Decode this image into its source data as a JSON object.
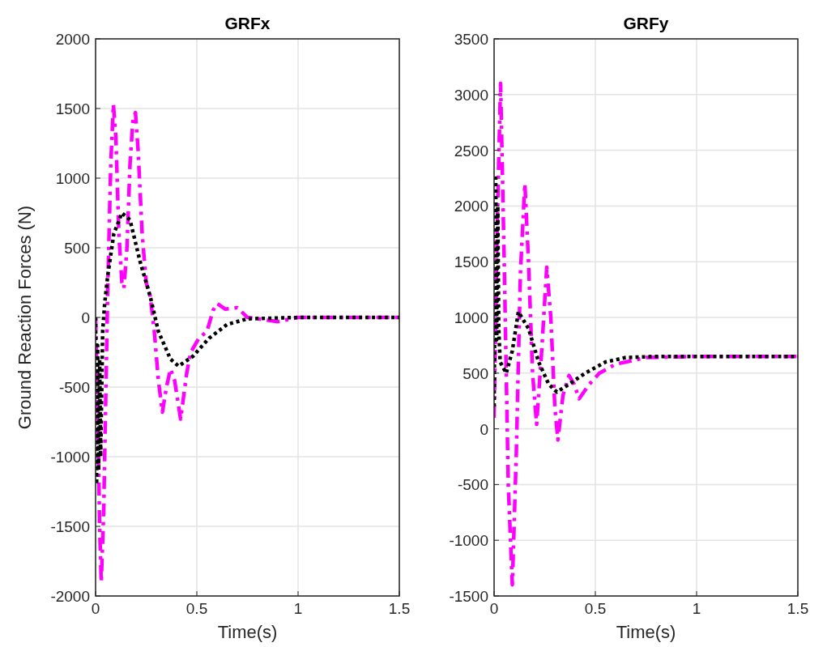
{
  "chart_data": [
    {
      "type": "line",
      "title": "GRFx",
      "xlabel": "Time(s)",
      "ylabel": "Ground Reaction Forces (N)",
      "xlim": [
        0,
        1.5
      ],
      "xticks": [
        0,
        0.5,
        1,
        1.5
      ],
      "ylim": [
        -2000,
        2000
      ],
      "yticks": [
        -2000,
        -1500,
        -1000,
        -500,
        0,
        500,
        1000,
        1500,
        2000
      ],
      "grid": true,
      "series": [
        {
          "color": "#ff00ff",
          "line_style": "dashdot",
          "x": [
            0,
            0.01,
            0.02,
            0.028,
            0.04,
            0.06,
            0.075,
            0.088,
            0.1,
            0.115,
            0.13,
            0.14,
            0.155,
            0.17,
            0.185,
            0.197,
            0.21,
            0.23,
            0.25,
            0.27,
            0.29,
            0.31,
            0.33,
            0.35,
            0.37,
            0.39,
            0.42,
            0.45,
            0.47,
            0.51,
            0.55,
            0.58,
            0.6,
            0.64,
            0.7,
            0.75,
            0.8,
            0.9,
            1.0,
            1.2,
            1.5
          ],
          "values": [
            0,
            -600,
            -1500,
            -1900,
            -1400,
            200,
            1100,
            1530,
            1300,
            600,
            250,
            210,
            500,
            1100,
            1430,
            1470,
            1200,
            600,
            250,
            150,
            -100,
            -450,
            -680,
            -500,
            -370,
            -450,
            -730,
            -400,
            -250,
            -150,
            -100,
            50,
            100,
            60,
            70,
            0,
            -10,
            -30,
            0,
            0,
            0
          ]
        },
        {
          "color": "#000000",
          "line_style": "dotted",
          "x": [
            0,
            0.005,
            0.01,
            0.015,
            0.02,
            0.025,
            0.035,
            0.045,
            0.06,
            0.09,
            0.13,
            0.17,
            0.22,
            0.27,
            0.31,
            0.37,
            0.41,
            0.48,
            0.56,
            0.65,
            0.75,
            1.0,
            1.5
          ],
          "values": [
            0,
            -1200,
            -200,
            -1100,
            -300,
            -1000,
            -100,
            100,
            300,
            600,
            750,
            700,
            400,
            150,
            -100,
            -300,
            -350,
            -280,
            -150,
            -50,
            -10,
            0,
            0
          ]
        }
      ]
    },
    {
      "type": "line",
      "title": "GRFy",
      "xlabel": "Time(s)",
      "xlim": [
        0,
        1.5
      ],
      "xticks": [
        0,
        0.5,
        1,
        1.5
      ],
      "ylim": [
        -1500,
        3500
      ],
      "yticks": [
        -1500,
        -1000,
        -500,
        0,
        500,
        1000,
        1500,
        2000,
        2500,
        3000,
        3500
      ],
      "grid": true,
      "series": [
        {
          "color": "#ff00ff",
          "line_style": "dashdot",
          "x": [
            0,
            0.015,
            0.032,
            0.05,
            0.07,
            0.09,
            0.11,
            0.13,
            0.152,
            0.17,
            0.19,
            0.21,
            0.235,
            0.26,
            0.28,
            0.3,
            0.315,
            0.34,
            0.37,
            0.395,
            0.42,
            0.47,
            0.52,
            0.6,
            0.75,
            1.0,
            1.5
          ],
          "values": [
            100,
            1800,
            3100,
            1500,
            -500,
            -1400,
            -200,
            1400,
            2200,
            1500,
            500,
            40,
            700,
            1450,
            1000,
            200,
            -100,
            300,
            480,
            400,
            270,
            400,
            500,
            580,
            640,
            650,
            650
          ]
        },
        {
          "color": "#000000",
          "line_style": "dotted",
          "x": [
            0,
            0.008,
            0.013,
            0.018,
            0.023,
            0.03,
            0.06,
            0.09,
            0.12,
            0.17,
            0.22,
            0.27,
            0.31,
            0.37,
            0.45,
            0.55,
            0.65,
            0.8,
            1.5
          ],
          "values": [
            200,
            2250,
            800,
            2000,
            900,
            600,
            500,
            700,
            1050,
            900,
            600,
            400,
            330,
            400,
            500,
            600,
            640,
            650,
            650
          ]
        }
      ]
    }
  ]
}
